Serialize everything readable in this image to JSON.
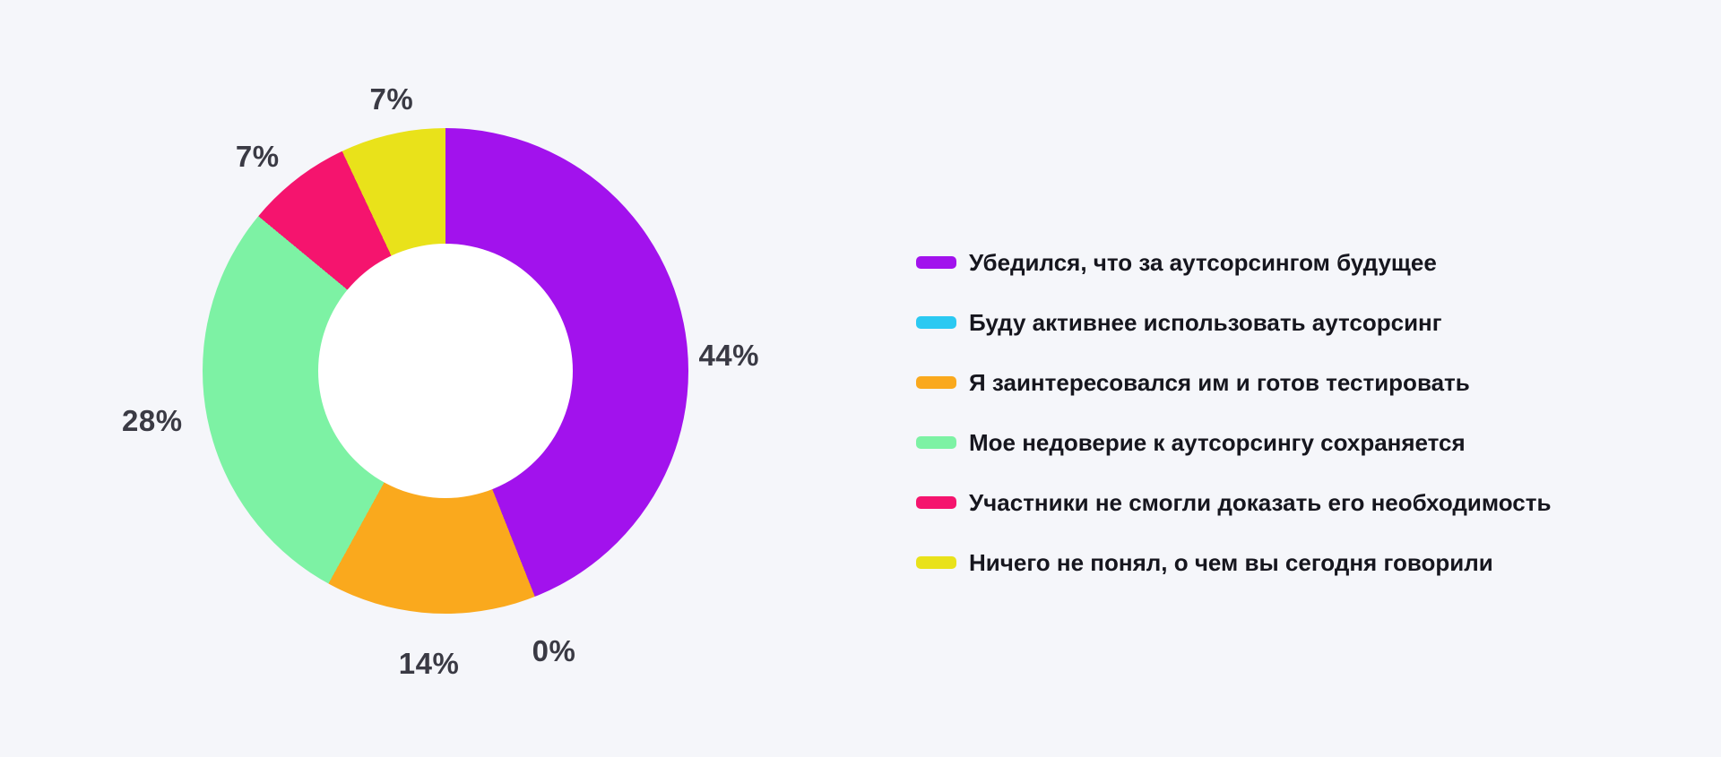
{
  "background_color": "#F5F6FA",
  "chart_data": {
    "type": "pie",
    "subtype": "donut",
    "title": "",
    "unit": "%",
    "start_angle_deg": 0,
    "direction": "clockwise",
    "hole_ratio": 0.52,
    "hole_color": "#FFFFFF",
    "legend_position": "right",
    "grid": false,
    "value_label_color": "#3A3A44",
    "legend_text_color": "#16161E",
    "series": [
      {
        "label": "Убедился, что за аутсорсингом будущее",
        "value": 44,
        "value_label": "44%",
        "color": "#A212ED"
      },
      {
        "label": "Буду активнее использовать аутсорсинг",
        "value": 0,
        "value_label": "0%",
        "color": "#2BC9F2"
      },
      {
        "label": "Я заинтересовался им и готов тестировать",
        "value": 14,
        "value_label": "14%",
        "color": "#FAA91D"
      },
      {
        "label": "Мое недоверие к аутсорсингу сохраняется",
        "value": 28,
        "value_label": "28%",
        "color": "#7DF2A4"
      },
      {
        "label": "Участники не смогли доказать его необходимость",
        "value": 7,
        "value_label": "7%",
        "color": "#F5146E"
      },
      {
        "label": "Ничего не понял, о чем вы сегодня говорили",
        "value": 7,
        "value_label": "7%",
        "color": "#E9E21A"
      }
    ]
  }
}
